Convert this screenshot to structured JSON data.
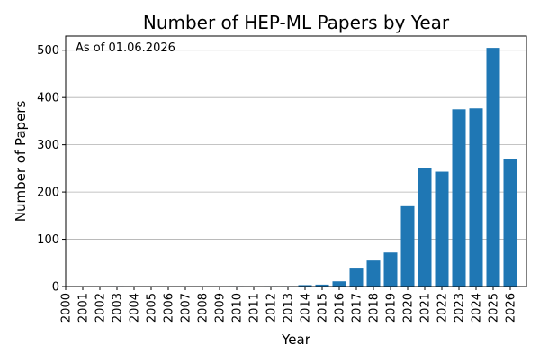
{
  "chart_data": {
    "type": "bar",
    "title": "Number of HEP-ML Papers by Year",
    "xlabel": "Year",
    "ylabel": "Number of Papers",
    "annotation": "As of 01.06.2026",
    "categories": [
      "2000",
      "2001",
      "2002",
      "2003",
      "2004",
      "2005",
      "2006",
      "2007",
      "2008",
      "2009",
      "2010",
      "2011",
      "2012",
      "2013",
      "2014",
      "2015",
      "2016",
      "2017",
      "2018",
      "2019",
      "2020",
      "2021",
      "2022",
      "2023",
      "2024",
      "2025",
      "2026"
    ],
    "values": [
      0,
      0,
      0,
      1,
      0,
      0,
      0,
      0,
      0,
      0,
      1,
      0,
      1,
      1,
      3,
      4,
      11,
      38,
      55,
      72,
      170,
      250,
      243,
      375,
      377,
      505,
      270
    ],
    "ylim": [
      0,
      530
    ],
    "yticks": [
      0,
      100,
      200,
      300,
      400,
      500
    ],
    "grid": "horizontal",
    "bar_color": "#1f77b4"
  }
}
